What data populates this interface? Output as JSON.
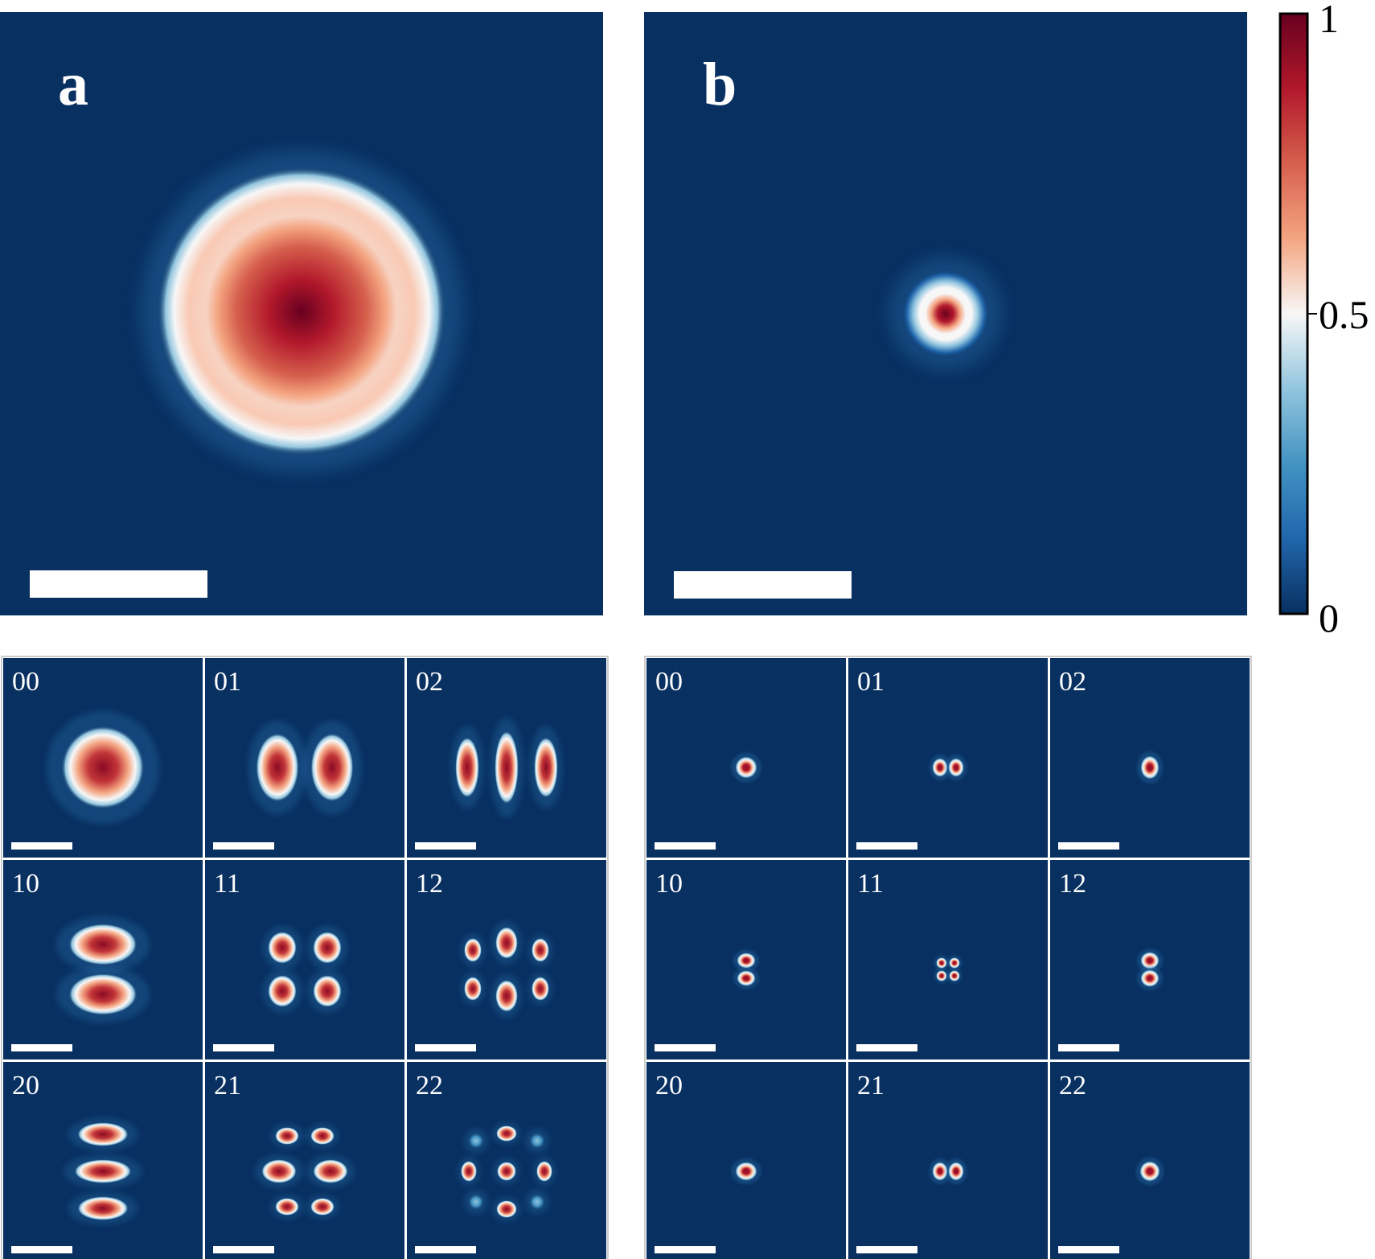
{
  "colors": {
    "background": "#083061",
    "scale_bar": "#ffffff",
    "colormap": [
      "#083061",
      "#2166ac",
      "#4393c3",
      "#92c5de",
      "#f7f7f7",
      "#f4a582",
      "#d6604d",
      "#b2182b",
      "#67001f"
    ]
  },
  "panels": {
    "a": {
      "label": "a"
    },
    "b": {
      "label": "b"
    }
  },
  "colorbar": {
    "tick_labels": {
      "top": "1",
      "middle": "0.5",
      "bottom": "0"
    }
  },
  "modes": {
    "labels": [
      "00",
      "01",
      "02",
      "10",
      "11",
      "12",
      "20",
      "21",
      "22"
    ]
  }
}
